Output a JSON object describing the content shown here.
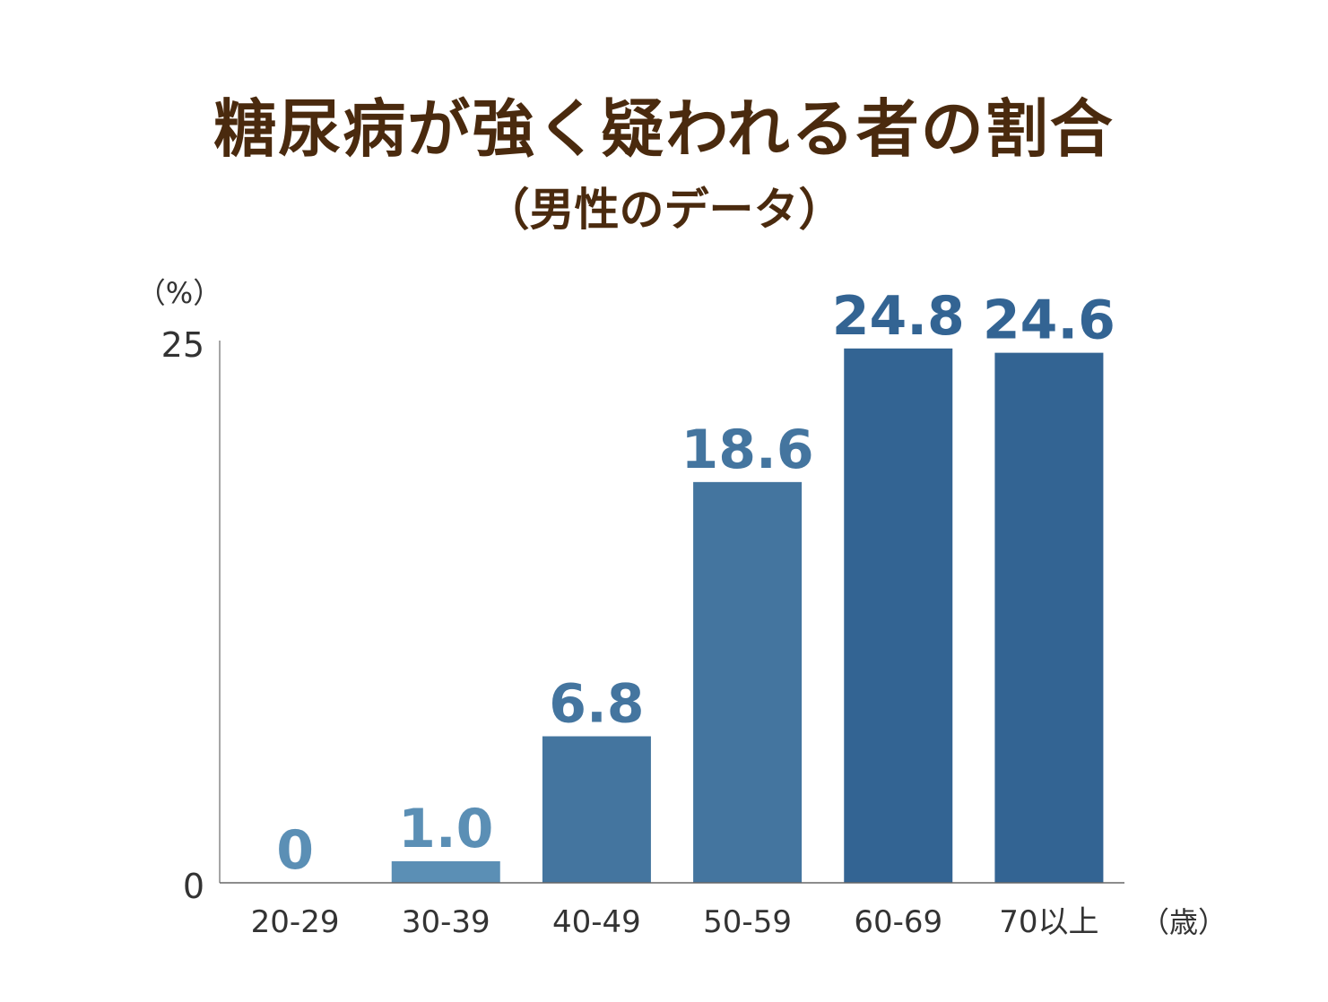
{
  "header": {
    "title": "糖尿病が強く疑われる者の割合",
    "subtitle": "（男性のデータ）"
  },
  "chart_data": {
    "type": "bar",
    "title": "糖尿病が強く疑われる者の割合",
    "subtitle": "（男性のデータ）",
    "y_unit_label": "（%）",
    "x_unit_label": "（歳）",
    "ylim": [
      0,
      25
    ],
    "y_ticks": [
      "0",
      "25"
    ],
    "categories": [
      "20-29",
      "30-39",
      "40-49",
      "50-59",
      "60-69",
      "70以上"
    ],
    "values": [
      0,
      1.0,
      6.8,
      18.6,
      24.8,
      24.6
    ],
    "value_labels": [
      "0",
      "1.0",
      "6.8",
      "18.6",
      "24.8",
      "24.6"
    ],
    "grid": false,
    "bar_colors": [
      "#5b8fb5",
      "#5b8fb5",
      "#44759f",
      "#44759f",
      "#336493",
      "#336493"
    ],
    "label_colors": [
      "#5b8fb5",
      "#5b8fb5",
      "#44759f",
      "#44759f",
      "#336493",
      "#336493"
    ]
  }
}
